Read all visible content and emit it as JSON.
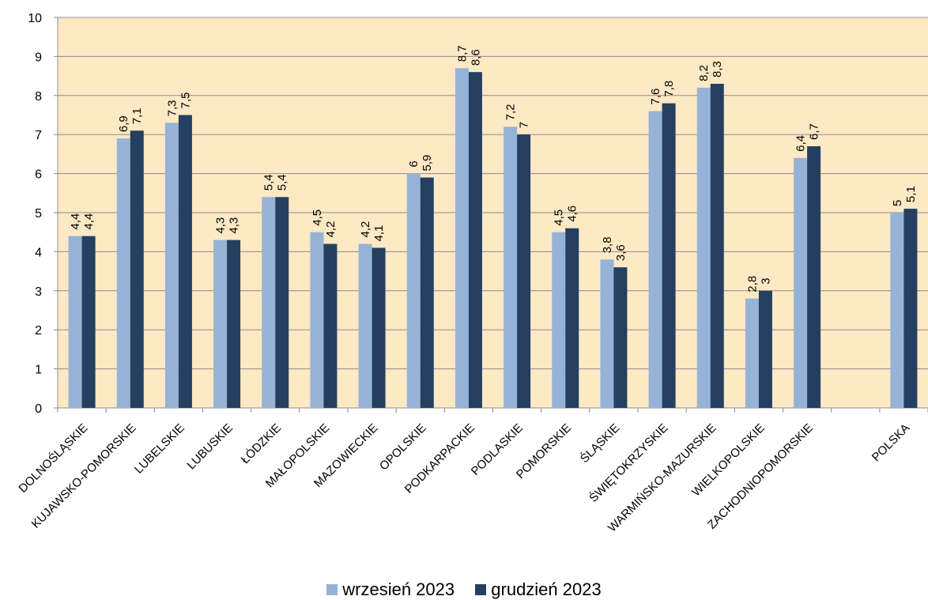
{
  "chart_data": {
    "type": "bar",
    "categories": [
      "DOLNOŚLĄSKIE",
      "KUJAWSKO-POMORSKIE",
      "LUBELSKIE",
      "LUBUSKIE",
      "ŁÓDZKIE",
      "MAŁOPOLSKIE",
      "MAZOWIECKIE",
      "OPOLSKIE",
      "PODKARPACKIE",
      "PODLASKIE",
      "POMORSKIE",
      "ŚLĄSKIE",
      "ŚWIĘTOKRZYSKIE",
      "WARMIŃSKO-MAZURSKIE",
      "WIELKOPOLSKIE",
      "ZACHODNIOPOMORSKIE",
      "",
      "POLSKA"
    ],
    "series": [
      {
        "name": "wrzesień 2023",
        "color": "#95b3d7",
        "values": [
          4.4,
          6.9,
          7.3,
          4.3,
          5.4,
          4.5,
          4.2,
          6,
          8.7,
          7.2,
          4.5,
          3.8,
          7.6,
          8.2,
          2.8,
          6.4,
          null,
          5
        ],
        "labels": [
          "4,4",
          "6,9",
          "7,3",
          "4,3",
          "5,4",
          "4,5",
          "4,2",
          "6",
          "8,7",
          "7,2",
          "4,5",
          "3,8",
          "7,6",
          "8,2",
          "2,8",
          "6,4",
          "",
          "5"
        ]
      },
      {
        "name": "grudzień 2023",
        "color": "#243f60",
        "values": [
          4.4,
          7.1,
          7.5,
          4.3,
          5.4,
          4.2,
          4.1,
          5.9,
          8.6,
          7,
          4.6,
          3.6,
          7.8,
          8.3,
          3,
          6.7,
          null,
          5.1
        ],
        "labels": [
          "4,4",
          "7,1",
          "7,5",
          "4,3",
          "5,4",
          "4,2",
          "4,1",
          "5,9",
          "8,6",
          "7",
          "4,6",
          "3,6",
          "7,8",
          "8,3",
          "3",
          "6,7",
          "",
          "5,1"
        ]
      }
    ],
    "ylim": [
      0,
      10
    ],
    "yticks": [
      "0",
      "1",
      "2",
      "3",
      "4",
      "5",
      "6",
      "7",
      "8",
      "9",
      "10"
    ],
    "plot_background": "#fde9c4",
    "grid": true,
    "legend_position": "bottom"
  }
}
